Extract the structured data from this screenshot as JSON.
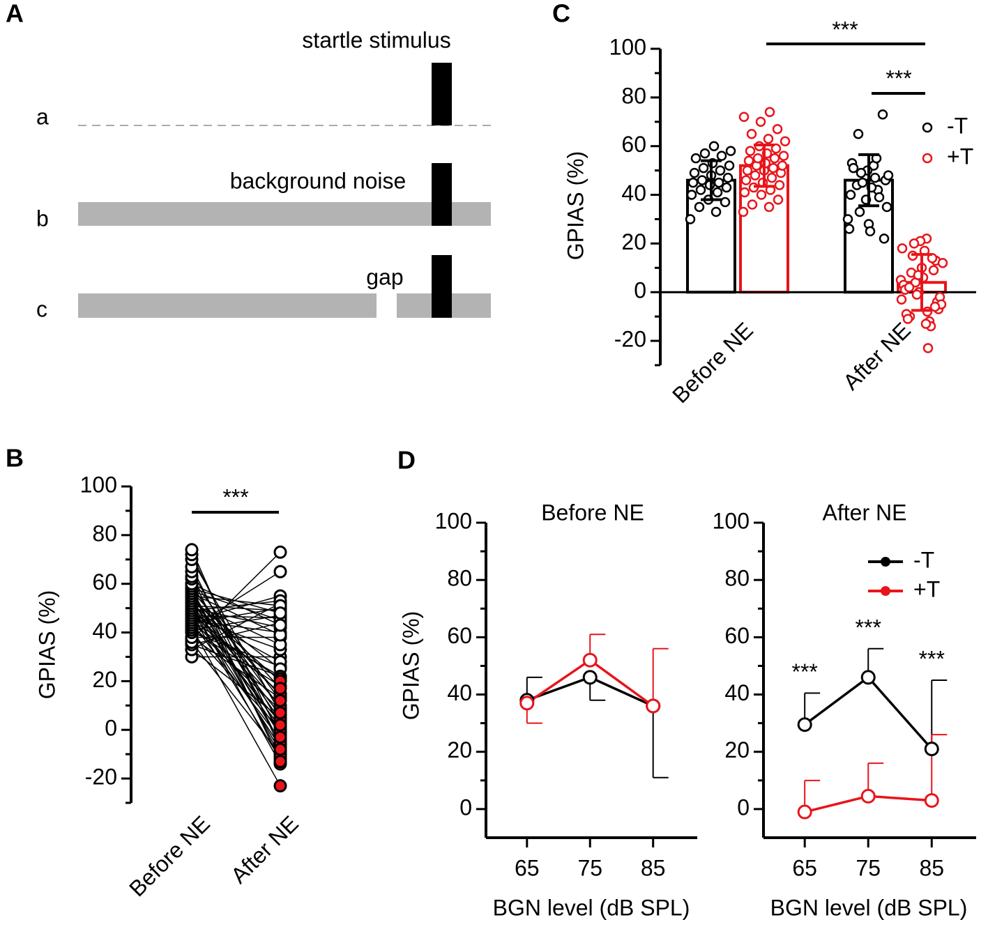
{
  "diagram": {
    "panel": "A",
    "rows": [
      "a",
      "b",
      "c"
    ],
    "stimulus_label": "startle stimulus",
    "noise_label": "background noise",
    "gap_label": "gap"
  },
  "chart_data": [
    {
      "type": "paired",
      "panel": "B",
      "ylabel": "GPIAS (%)",
      "categories": [
        "Before NE",
        "After NE"
      ],
      "ylim": [
        -30,
        100
      ],
      "yticks": [
        -20,
        0,
        20,
        40,
        60,
        80,
        100
      ],
      "yminor": [
        -30,
        -10,
        10,
        30,
        50,
        70,
        90
      ],
      "annotations": [
        "***"
      ],
      "series": [
        {
          "color": "#ffffff",
          "before": [
            30,
            33,
            35,
            37,
            38,
            40,
            41,
            42,
            43,
            44,
            45,
            45,
            46,
            47,
            48,
            49,
            50,
            51,
            52,
            53,
            55,
            56,
            57,
            58,
            60
          ],
          "after": [
            30,
            52,
            44,
            73,
            38,
            26,
            47,
            65,
            22,
            50,
            40,
            55,
            33,
            46,
            28,
            53,
            42,
            49,
            35,
            25,
            51,
            39,
            45,
            48,
            43
          ]
        },
        {
          "color": "#e8141b",
          "before": [
            33,
            35,
            36,
            38,
            40,
            41,
            42,
            43,
            44,
            45,
            46,
            47,
            48,
            49,
            50,
            50,
            51,
            52,
            52,
            53,
            54,
            55,
            55,
            56,
            57,
            58,
            59,
            60,
            62,
            63,
            65,
            67,
            70,
            72,
            74
          ],
          "after": [
            5,
            22,
            -10,
            13,
            0,
            18,
            -23,
            8,
            -4,
            21,
            3,
            -12,
            15,
            -7,
            10,
            1,
            -14,
            20,
            -2,
            6,
            -9,
            14,
            4,
            -5,
            17,
            -11,
            9,
            -1,
            12,
            -13,
            2,
            -6,
            7,
            -3,
            -8
          ]
        }
      ]
    },
    {
      "type": "bar",
      "panel": "C",
      "ylabel": "GPIAS (%)",
      "categories": [
        "Before NE",
        "After NE"
      ],
      "ylim": [
        -30,
        100
      ],
      "yticks": [
        -20,
        0,
        20,
        40,
        60,
        80,
        100
      ],
      "yminor": [
        -30,
        -10,
        10,
        30,
        50,
        70,
        90
      ],
      "annotations": [
        "***",
        "***"
      ],
      "series": [
        {
          "name": "-T",
          "color": "#000000",
          "values": [
            46,
            46
          ],
          "errors": [
            8,
            10.5
          ],
          "points": [
            [
              30,
              33,
              35,
              37,
              38,
              40,
              41,
              42,
              43,
              44,
              45,
              45,
              46,
              47,
              48,
              49,
              50,
              51,
              52,
              53,
              55,
              56,
              57,
              58,
              60
            ],
            [
              30,
              52,
              44,
              73,
              38,
              26,
              47,
              65,
              22,
              50,
              40,
              55,
              33,
              46,
              28,
              53,
              42,
              49,
              35,
              25,
              51,
              39,
              45,
              48,
              43
            ]
          ]
        },
        {
          "name": "+T",
          "color": "#e8141b",
          "values": [
            52,
            4
          ],
          "errors": [
            8.5,
            11.5
          ],
          "points": [
            [
              33,
              35,
              36,
              38,
              40,
              41,
              42,
              43,
              44,
              45,
              46,
              47,
              48,
              49,
              50,
              50,
              51,
              52,
              52,
              53,
              54,
              55,
              55,
              56,
              57,
              58,
              59,
              60,
              62,
              63,
              65,
              67,
              70,
              72,
              74
            ],
            [
              5,
              22,
              -10,
              13,
              0,
              18,
              -23,
              8,
              -4,
              21,
              3,
              -12,
              15,
              -7,
              10,
              1,
              -14,
              20,
              -2,
              6,
              -9,
              14,
              4,
              -5,
              17,
              -11,
              9,
              -1,
              12,
              -13,
              2,
              -6,
              7,
              -3,
              -8
            ]
          ]
        }
      ]
    },
    {
      "type": "line",
      "title": "Before NE",
      "panel": "D",
      "ylabel": "GPIAS (%)",
      "xlabel": "BGN level (dB SPL)",
      "x": [
        65,
        75,
        85
      ],
      "xlim": [
        58.5,
        92
      ],
      "xticks": [
        65,
        75,
        85
      ],
      "ylim": [
        -10,
        100
      ],
      "yticks": [
        0,
        20,
        40,
        60,
        80,
        100
      ],
      "yminor": [
        10,
        30,
        50,
        70,
        90
      ],
      "series": [
        {
          "name": "-T",
          "color": "#000000",
          "values": [
            38,
            46,
            36
          ],
          "errors": [
            8,
            8,
            25
          ],
          "error_side": [
            "up",
            "down",
            "down"
          ]
        },
        {
          "name": "+T",
          "color": "#e8141b",
          "values": [
            37,
            52,
            36
          ],
          "errors": [
            7,
            9,
            20
          ],
          "error_side": [
            "down",
            "up",
            "up"
          ]
        }
      ]
    },
    {
      "type": "line",
      "title": "After NE",
      "xlabel": "BGN level (dB SPL)",
      "x": [
        65,
        75,
        85
      ],
      "xlim": [
        58.5,
        92
      ],
      "xticks": [
        65,
        75,
        85
      ],
      "ylim": [
        -10,
        100
      ],
      "yticks": [
        0,
        20,
        40,
        60,
        80,
        100
      ],
      "yminor": [
        10,
        30,
        50,
        70,
        90
      ],
      "annotations": [
        "***",
        "***",
        "***"
      ],
      "legend": true,
      "series": [
        {
          "name": "-T",
          "color": "#000000",
          "values": [
            29.5,
            46,
            21
          ],
          "errors": [
            11,
            10,
            24
          ],
          "error_side": [
            "up",
            "up",
            "up"
          ]
        },
        {
          "name": "+T",
          "color": "#e8141b",
          "values": [
            -1,
            4.5,
            3
          ],
          "errors": [
            11,
            11.5,
            23
          ],
          "error_side": [
            "up",
            "up",
            "up"
          ]
        }
      ]
    }
  ]
}
